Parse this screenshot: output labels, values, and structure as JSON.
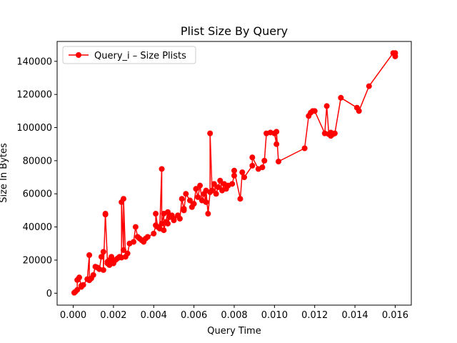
{
  "chart_data": {
    "type": "line",
    "title": "Plist Size By Query",
    "xlabel": "Query Time",
    "ylabel": "Size In Bytes",
    "xlim": [
      -0.0008,
      0.0168
    ],
    "ylim": [
      -7200,
      152000
    ],
    "xticks": [
      0.0,
      0.002,
      0.004,
      0.006,
      0.008,
      0.01,
      0.012,
      0.014,
      0.016
    ],
    "xtick_labels": [
      "0.000",
      "0.002",
      "0.004",
      "0.006",
      "0.008",
      "0.010",
      "0.012",
      "0.014",
      "0.016"
    ],
    "yticks": [
      0,
      20000,
      40000,
      60000,
      80000,
      100000,
      120000,
      140000
    ],
    "ytick_labels": [
      "0",
      "20000",
      "40000",
      "60000",
      "80000",
      "100000",
      "120000",
      "140000"
    ],
    "grid": false,
    "legend": {
      "placement": "top-left"
    },
    "series": [
      {
        "name": "Query_i – Size Plists",
        "color": "#ff0000",
        "marker": "circle",
        "x": [
          5e-05,
          0.0001,
          0.0002,
          0.0002,
          0.0003,
          0.0004,
          0.0004,
          0.0005,
          0.0007,
          0.0008,
          0.0008,
          0.0009,
          0.001,
          0.0011,
          0.0012,
          0.0013,
          0.0014,
          0.0015,
          0.0015,
          0.0016,
          0.0016,
          0.0017,
          0.0017,
          0.0018,
          0.0018,
          0.0019,
          0.002,
          0.0021,
          0.0022,
          0.0023,
          0.0024,
          0.0024,
          0.0025,
          0.0025,
          0.0026,
          0.0027,
          0.0028,
          0.003,
          0.0031,
          0.0032,
          0.0033,
          0.0034,
          0.0035,
          0.0036,
          0.0037,
          0.004,
          0.0041,
          0.0041,
          0.0042,
          0.0043,
          0.0044,
          0.0044,
          0.0045,
          0.0045,
          0.0046,
          0.0047,
          0.0047,
          0.0048,
          0.0049,
          0.005,
          0.005,
          0.0052,
          0.0053,
          0.0054,
          0.0055,
          0.0055,
          0.0056,
          0.0058,
          0.0059,
          0.006,
          0.0061,
          0.0062,
          0.0063,
          0.0064,
          0.0065,
          0.0066,
          0.0066,
          0.0067,
          0.0068,
          0.0068,
          0.0069,
          0.007,
          0.0071,
          0.0072,
          0.0073,
          0.0074,
          0.0075,
          0.0076,
          0.0077,
          0.0079,
          0.008,
          0.008,
          0.0083,
          0.0084,
          0.0085,
          0.0089,
          0.0089,
          0.0092,
          0.0094,
          0.0095,
          0.0096,
          0.0098,
          0.01,
          0.0101,
          0.0101,
          0.0102,
          0.0115,
          0.0117,
          0.0118,
          0.0119,
          0.012,
          0.0125,
          0.0126,
          0.0127,
          0.0128,
          0.0128,
          0.0129,
          0.013,
          0.0133,
          0.0141,
          0.0142,
          0.0147,
          0.0159,
          0.016,
          0.016
        ],
        "y": [
          300,
          800,
          2000,
          8000,
          9500,
          4500,
          3800,
          5000,
          8500,
          23000,
          7800,
          9000,
          11000,
          16000,
          15500,
          14500,
          22000,
          25000,
          14000,
          48000,
          47500,
          19000,
          18000,
          20000,
          17000,
          22000,
          18000,
          20000,
          21000,
          22000,
          21500,
          55000,
          26000,
          57000,
          22000,
          24000,
          30000,
          31000,
          40000,
          34000,
          33000,
          32000,
          31000,
          33000,
          34000,
          36000,
          41000,
          48000,
          40000,
          39000,
          75000,
          42000,
          48000,
          38000,
          43000,
          49000,
          42000,
          46000,
          47000,
          44000,
          45000,
          47000,
          45000,
          57000,
          51000,
          50000,
          60000,
          56000,
          52000,
          54000,
          63000,
          58000,
          65000,
          56000,
          60000,
          55000,
          62000,
          48000,
          61000,
          96500,
          62000,
          66000,
          60000,
          64000,
          68000,
          62000,
          66000,
          63000,
          65000,
          66000,
          71000,
          74000,
          57000,
          73000,
          70000,
          77000,
          82000,
          75000,
          76000,
          80000,
          96500,
          97000,
          96500,
          90000,
          97500,
          79500,
          87500,
          107000,
          109000,
          110000,
          110000,
          96500,
          113000,
          96000,
          97000,
          95000,
          96000,
          96500,
          118000,
          112000,
          110000,
          125000,
          145000,
          145000,
          143000
        ]
      }
    ]
  }
}
